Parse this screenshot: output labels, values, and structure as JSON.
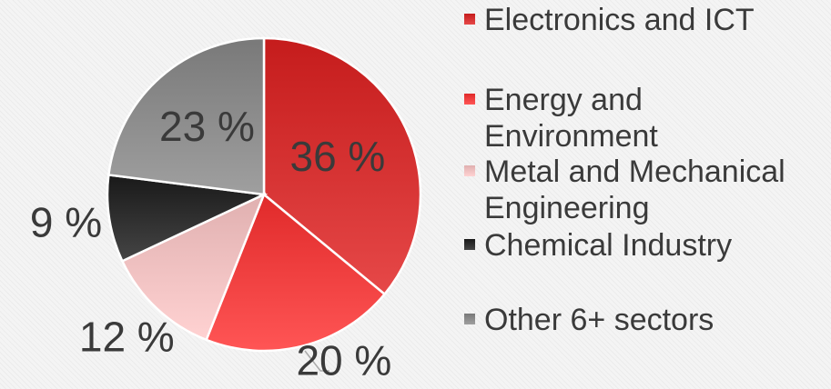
{
  "chart_data": {
    "type": "pie",
    "categories": [
      "Electronics and ICT",
      "Energy and Environment",
      "Metal and Mechanical Engineering",
      "Chemical Industry",
      "Other 6+ sectors"
    ],
    "values": [
      36,
      20,
      12,
      9,
      23
    ],
    "data_labels": [
      "36 %",
      "20 %",
      "12 %",
      "9 %",
      "23 %"
    ],
    "colors": [
      "#e02020",
      "#ff3030",
      "#ffc8c8",
      "#1c1c1c",
      "#8a8a8a"
    ],
    "legend_position": "right",
    "start_angle_deg": 0,
    "direction": "clockwise"
  }
}
